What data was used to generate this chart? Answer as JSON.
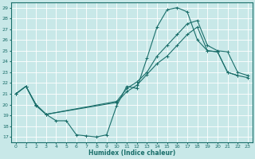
{
  "xlabel": "Humidex (Indice chaleur)",
  "bg_color": "#c8e8e8",
  "grid_color": "#ffffff",
  "line_color": "#1a6e6a",
  "xlim": [
    -0.5,
    23.5
  ],
  "ylim": [
    16.5,
    29.5
  ],
  "yticks": [
    17,
    18,
    19,
    20,
    21,
    22,
    23,
    24,
    25,
    26,
    27,
    28,
    29
  ],
  "xticks": [
    0,
    1,
    2,
    3,
    4,
    5,
    6,
    7,
    8,
    9,
    10,
    11,
    12,
    13,
    14,
    15,
    16,
    17,
    18,
    19,
    20,
    21,
    22,
    23
  ],
  "curve1_x": [
    0,
    1,
    2,
    3,
    4,
    5,
    6,
    7,
    8,
    9,
    10,
    11,
    12,
    13,
    14,
    15,
    16,
    17,
    18,
    19,
    20,
    21,
    22
  ],
  "curve1_y": [
    21,
    21.7,
    19.9,
    19.1,
    18.5,
    18.5,
    17.2,
    17.1,
    17.0,
    17.2,
    19.9,
    21.7,
    21.5,
    24.3,
    27.2,
    28.8,
    29.0,
    28.6,
    26.0,
    25.0,
    24.9,
    23.0,
    22.7
  ],
  "curve2_x": [
    0,
    1,
    2,
    3,
    10,
    11,
    12,
    13,
    14,
    15,
    16,
    17,
    18,
    19,
    20,
    21,
    22,
    23
  ],
  "curve2_y": [
    21,
    21.7,
    20.0,
    19.1,
    20.3,
    21.5,
    22.1,
    23.0,
    24.5,
    25.5,
    26.5,
    27.5,
    27.8,
    25.5,
    25.0,
    24.9,
    23.0,
    22.7
  ],
  "curve3_x": [
    0,
    1,
    2,
    3,
    10,
    11,
    12,
    13,
    14,
    15,
    16,
    17,
    18,
    19,
    20,
    21,
    22,
    23
  ],
  "curve3_y": [
    21,
    21.7,
    20.0,
    19.1,
    20.2,
    21.2,
    21.8,
    22.8,
    23.8,
    24.5,
    25.5,
    26.5,
    27.2,
    25.0,
    24.9,
    23.0,
    22.7,
    22.5
  ]
}
